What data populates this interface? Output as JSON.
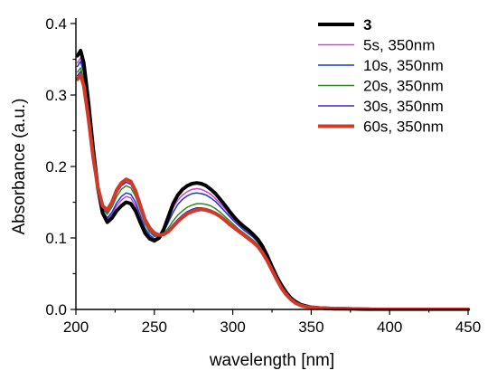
{
  "chart_data": {
    "type": "line",
    "title": "",
    "xlabel": "wavelength [nm]",
    "ylabel": "Absorbance (a.u.)",
    "xlim": [
      200,
      450
    ],
    "ylim": [
      0.0,
      0.4
    ],
    "x_ticks": [
      200,
      250,
      300,
      350,
      400,
      450
    ],
    "x_tick_labels": [
      "200",
      "250",
      "300",
      "350",
      "400",
      "450"
    ],
    "y_ticks": [
      0.0,
      0.1,
      0.2,
      0.3,
      0.4
    ],
    "y_tick_labels": [
      "0.0",
      "0.1",
      "0.2",
      "0.3",
      "0.4"
    ],
    "grid": false,
    "legend_position": "top-right",
    "x": [
      201,
      203,
      205,
      208,
      211,
      214,
      217,
      220,
      223,
      226,
      229,
      232,
      235,
      238,
      241,
      244,
      247,
      250,
      253,
      256,
      259,
      262,
      265,
      268,
      271,
      274,
      277,
      280,
      283,
      286,
      289,
      292,
      295,
      298,
      301,
      304,
      307,
      310,
      313,
      316,
      319,
      322,
      325,
      328,
      331,
      334,
      337,
      340,
      343,
      346,
      350,
      355,
      360,
      365,
      370,
      380,
      390,
      400,
      420,
      450
    ],
    "series": [
      {
        "name": "3",
        "color": "#000000",
        "width": 4,
        "bold": true,
        "values": [
          0.355,
          0.362,
          0.345,
          0.29,
          0.225,
          0.17,
          0.135,
          0.122,
          0.128,
          0.138,
          0.145,
          0.15,
          0.148,
          0.138,
          0.122,
          0.107,
          0.099,
          0.096,
          0.1,
          0.112,
          0.13,
          0.148,
          0.16,
          0.168,
          0.173,
          0.176,
          0.177,
          0.176,
          0.173,
          0.168,
          0.162,
          0.154,
          0.146,
          0.137,
          0.129,
          0.122,
          0.116,
          0.111,
          0.105,
          0.098,
          0.088,
          0.075,
          0.06,
          0.046,
          0.034,
          0.024,
          0.016,
          0.011,
          0.007,
          0.005,
          0.003,
          0.002,
          0.0015,
          0.001,
          0.001,
          0.0005,
          0.0,
          0.0,
          0.0,
          0.0
        ]
      },
      {
        "name": "5s, 350nm",
        "color": "#d442d4",
        "width": 1.5,
        "bold": false,
        "values": [
          0.345,
          0.352,
          0.336,
          0.283,
          0.222,
          0.17,
          0.137,
          0.126,
          0.133,
          0.145,
          0.153,
          0.158,
          0.156,
          0.145,
          0.128,
          0.111,
          0.102,
          0.098,
          0.101,
          0.111,
          0.126,
          0.142,
          0.153,
          0.16,
          0.165,
          0.168,
          0.169,
          0.168,
          0.165,
          0.161,
          0.155,
          0.148,
          0.141,
          0.133,
          0.125,
          0.119,
          0.113,
          0.108,
          0.103,
          0.096,
          0.086,
          0.073,
          0.058,
          0.044,
          0.032,
          0.022,
          0.015,
          0.01,
          0.006,
          0.004,
          0.003,
          0.002,
          0.0015,
          0.001,
          0.001,
          0.0005,
          0.0,
          0.0,
          0.0,
          0.0
        ]
      },
      {
        "name": "10s, 350nm",
        "color": "#1f35d8",
        "width": 1.5,
        "bold": false,
        "values": [
          0.34,
          0.347,
          0.331,
          0.279,
          0.22,
          0.17,
          0.138,
          0.128,
          0.136,
          0.149,
          0.158,
          0.163,
          0.161,
          0.15,
          0.132,
          0.114,
          0.104,
          0.099,
          0.101,
          0.109,
          0.122,
          0.136,
          0.147,
          0.154,
          0.159,
          0.162,
          0.163,
          0.162,
          0.16,
          0.156,
          0.151,
          0.144,
          0.137,
          0.13,
          0.123,
          0.117,
          0.111,
          0.106,
          0.101,
          0.094,
          0.085,
          0.072,
          0.057,
          0.043,
          0.031,
          0.022,
          0.015,
          0.01,
          0.006,
          0.004,
          0.003,
          0.002,
          0.0015,
          0.001,
          0.001,
          0.0005,
          0.0,
          0.0,
          0.0,
          0.0
        ]
      },
      {
        "name": "20s, 350nm",
        "color": "#2e8b1e",
        "width": 1.5,
        "bold": false,
        "values": [
          0.332,
          0.338,
          0.323,
          0.273,
          0.217,
          0.171,
          0.141,
          0.133,
          0.143,
          0.158,
          0.168,
          0.173,
          0.17,
          0.158,
          0.139,
          0.12,
          0.108,
          0.102,
          0.102,
          0.106,
          0.114,
          0.124,
          0.132,
          0.138,
          0.143,
          0.146,
          0.148,
          0.148,
          0.147,
          0.145,
          0.141,
          0.136,
          0.13,
          0.124,
          0.118,
          0.112,
          0.107,
          0.102,
          0.097,
          0.091,
          0.082,
          0.07,
          0.056,
          0.042,
          0.031,
          0.021,
          0.014,
          0.009,
          0.006,
          0.004,
          0.003,
          0.002,
          0.0015,
          0.001,
          0.001,
          0.0005,
          0.0,
          0.0,
          0.0,
          0.0
        ]
      },
      {
        "name": "30s, 350nm",
        "color": "#4a22b8",
        "width": 1.5,
        "bold": false,
        "values": [
          0.327,
          0.333,
          0.318,
          0.27,
          0.215,
          0.171,
          0.143,
          0.136,
          0.147,
          0.163,
          0.173,
          0.178,
          0.175,
          0.162,
          0.142,
          0.123,
          0.111,
          0.104,
          0.103,
          0.105,
          0.111,
          0.119,
          0.126,
          0.132,
          0.137,
          0.14,
          0.142,
          0.142,
          0.141,
          0.139,
          0.136,
          0.132,
          0.127,
          0.121,
          0.115,
          0.11,
          0.105,
          0.1,
          0.095,
          0.089,
          0.08,
          0.069,
          0.055,
          0.042,
          0.03,
          0.021,
          0.014,
          0.009,
          0.006,
          0.004,
          0.003,
          0.002,
          0.0015,
          0.001,
          0.001,
          0.0005,
          0.0,
          0.0,
          0.0,
          0.0
        ]
      },
      {
        "name": "60s, 350nm",
        "color": "#d13a2a",
        "width": 4,
        "bold": false,
        "values": [
          0.322,
          0.328,
          0.313,
          0.267,
          0.213,
          0.171,
          0.145,
          0.139,
          0.15,
          0.167,
          0.177,
          0.182,
          0.179,
          0.166,
          0.146,
          0.126,
          0.114,
          0.107,
          0.104,
          0.105,
          0.109,
          0.116,
          0.123,
          0.129,
          0.134,
          0.137,
          0.139,
          0.14,
          0.139,
          0.137,
          0.134,
          0.13,
          0.125,
          0.119,
          0.114,
          0.109,
          0.104,
          0.099,
          0.094,
          0.088,
          0.079,
          0.068,
          0.055,
          0.042,
          0.03,
          0.021,
          0.014,
          0.009,
          0.006,
          0.004,
          0.003,
          0.002,
          0.0015,
          0.001,
          0.001,
          0.0005,
          0.0,
          0.0,
          0.0,
          0.0
        ]
      }
    ]
  }
}
